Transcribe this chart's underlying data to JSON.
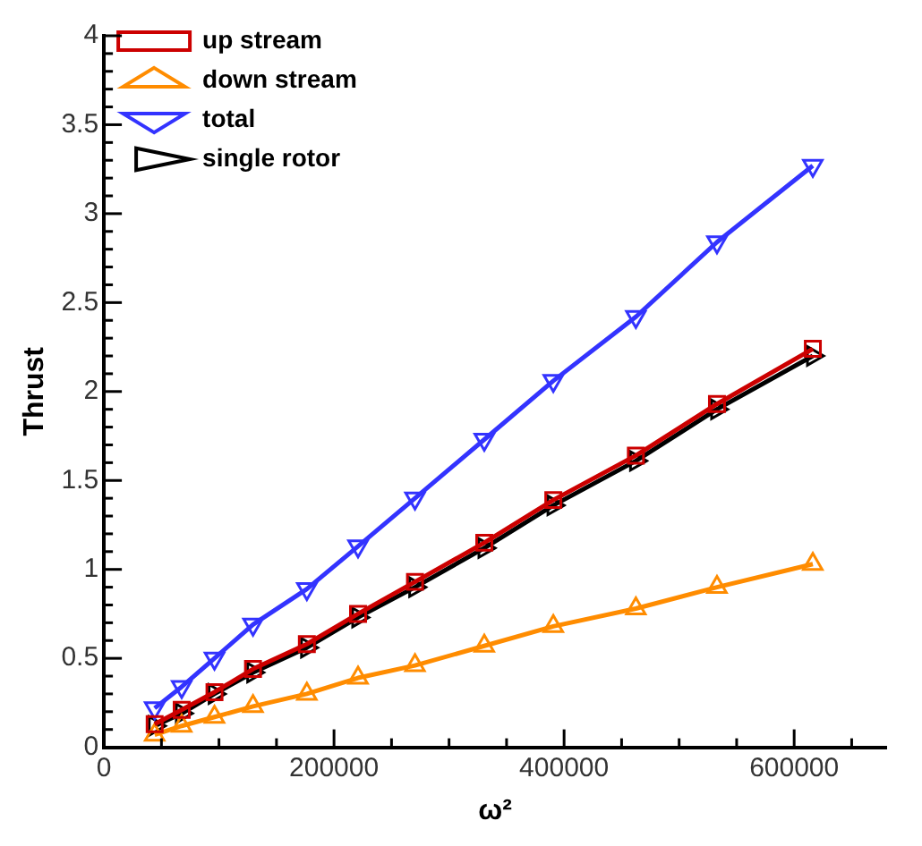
{
  "chart_data": {
    "type": "line",
    "xlabel": "ω²",
    "ylabel": "Thrust",
    "x": [
      44100,
      67600,
      96100,
      129600,
      176400,
      220900,
      270400,
      330625,
      390625,
      462400,
      532900,
      616225
    ],
    "series": [
      {
        "name": "up stream",
        "color": "#cc0000",
        "marker": "square",
        "values": [
          0.13,
          0.21,
          0.31,
          0.44,
          0.58,
          0.75,
          0.93,
          1.15,
          1.39,
          1.64,
          1.93,
          2.24
        ]
      },
      {
        "name": "down stream",
        "color": "#ff8c00",
        "marker": "triangle",
        "values": [
          0.07,
          0.12,
          0.17,
          0.23,
          0.3,
          0.39,
          0.46,
          0.57,
          0.68,
          0.78,
          0.9,
          1.03
        ]
      },
      {
        "name": "total",
        "color": "#3333ff",
        "marker": "triangle-down",
        "values": [
          0.22,
          0.34,
          0.5,
          0.69,
          0.89,
          1.13,
          1.4,
          1.73,
          2.06,
          2.42,
          2.84,
          3.27
        ]
      },
      {
        "name": "single rotor",
        "color": "#000000",
        "marker": "triangle-right",
        "values": [
          0.12,
          0.19,
          0.3,
          0.42,
          0.56,
          0.73,
          0.9,
          1.12,
          1.36,
          1.61,
          1.9,
          2.2
        ]
      }
    ],
    "xlim": [
      0,
      680000
    ],
    "xticks": [
      0,
      {
        "value": 50000,
        "label": null
      },
      {
        "value": 100000,
        "label": null
      },
      {
        "value": 150000,
        "label": null
      },
      200000,
      {
        "value": 250000,
        "label": null
      },
      {
        "value": 300000,
        "label": null
      },
      {
        "value": 350000,
        "label": null
      },
      400000,
      {
        "value": 450000,
        "label": null
      },
      {
        "value": 500000,
        "label": null
      },
      {
        "value": 550000,
        "label": null
      },
      600000,
      {
        "value": 650000,
        "label": null
      }
    ],
    "ylim": [
      0,
      4
    ],
    "yticks": [
      0,
      {
        "value": 0.1,
        "label": null
      },
      {
        "value": 0.2,
        "label": null
      },
      {
        "value": 0.3,
        "label": null
      },
      {
        "value": 0.4,
        "label": null
      },
      0.5,
      {
        "value": 0.6,
        "label": null
      },
      {
        "value": 0.7,
        "label": null
      },
      {
        "value": 0.8,
        "label": null
      },
      {
        "value": 0.9,
        "label": null
      },
      1,
      {
        "value": 1.1,
        "label": null
      },
      {
        "value": 1.2,
        "label": null
      },
      {
        "value": 1.3,
        "label": null
      },
      {
        "value": 1.4,
        "label": null
      },
      1.5,
      {
        "value": 1.6,
        "label": null
      },
      {
        "value": 1.7,
        "label": null
      },
      {
        "value": 1.8,
        "label": null
      },
      {
        "value": 1.9,
        "label": null
      },
      2,
      {
        "value": 2.1,
        "label": null
      },
      {
        "value": 2.2,
        "label": null
      },
      {
        "value": 2.3,
        "label": null
      },
      {
        "value": 2.4,
        "label": null
      },
      2.5,
      {
        "value": 2.6,
        "label": null
      },
      {
        "value": 2.7,
        "label": null
      },
      {
        "value": 2.8,
        "label": null
      },
      {
        "value": 2.9,
        "label": null
      },
      3,
      {
        "value": 3.1,
        "label": null
      },
      {
        "value": 3.2,
        "label": null
      },
      {
        "value": 3.3,
        "label": null
      },
      {
        "value": 3.4,
        "label": null
      },
      3.5,
      {
        "value": 3.6,
        "label": null
      },
      {
        "value": 3.7,
        "label": null
      },
      {
        "value": 3.8,
        "label": null
      },
      {
        "value": 3.9,
        "label": null
      },
      4
    ],
    "grid": false,
    "legend": "top left",
    "line_style": "solid"
  }
}
